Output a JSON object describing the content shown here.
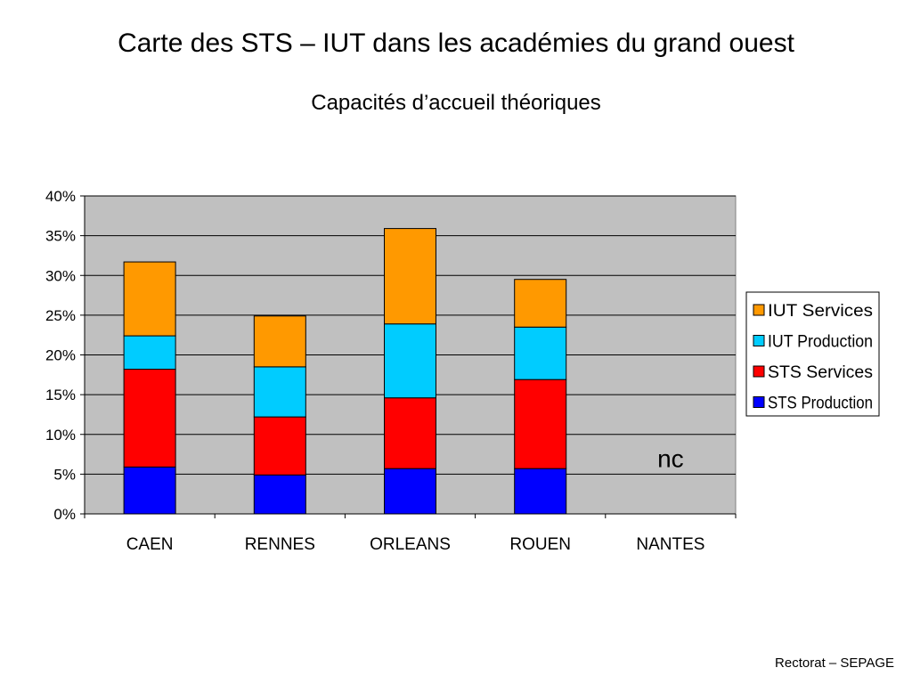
{
  "slide": {
    "title": "Carte des STS – IUT dans les académies du grand ouest",
    "subtitle": "Capacités d’accueil théoriques",
    "footer": "Rectorat  – SEPAGE"
  },
  "chart_data": {
    "type": "bar",
    "stacked": true,
    "categories": [
      "CAEN",
      "RENNES",
      "ORLEANS",
      "ROUEN",
      "NANTES"
    ],
    "series": [
      {
        "name": "STS Production",
        "color": "#0000ff",
        "values": [
          5.9,
          4.9,
          5.7,
          5.7,
          null
        ]
      },
      {
        "name": "STS Services",
        "color": "#ff0000",
        "values": [
          12.3,
          7.3,
          8.9,
          11.2,
          null
        ]
      },
      {
        "name": "IUT Production",
        "color": "#00ccff",
        "values": [
          4.2,
          6.3,
          9.3,
          6.6,
          null
        ]
      },
      {
        "name": "IUT Services",
        "color": "#ff9900",
        "values": [
          9.3,
          6.4,
          12.0,
          6.0,
          null
        ]
      }
    ],
    "ylim": [
      0,
      40
    ],
    "yticks": [
      "0%",
      "5%",
      "10%",
      "15%",
      "20%",
      "25%",
      "30%",
      "35%",
      "40%"
    ],
    "grid": true,
    "plot_background": "#c0c0c0",
    "legend_position": "right",
    "annotations": [
      {
        "category": "NANTES",
        "text": "nc"
      }
    ]
  }
}
